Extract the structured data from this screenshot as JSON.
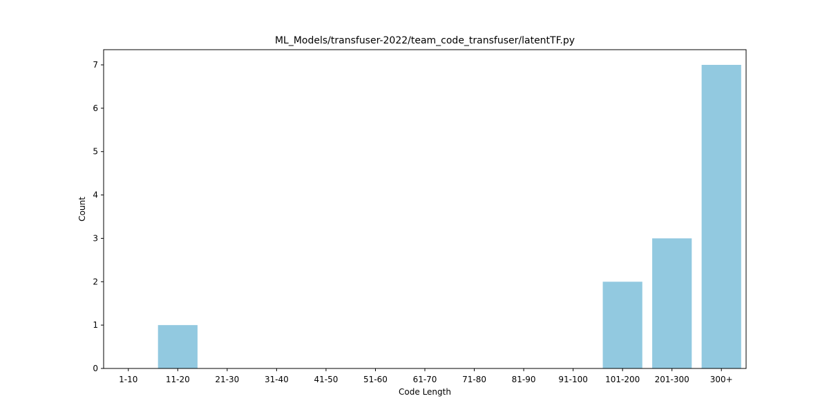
{
  "chart_data": {
    "type": "bar",
    "title": "ML_Models/transfuser-2022/team_code_transfuser/latentTF.py",
    "xlabel": "Code Length",
    "ylabel": "Count",
    "categories": [
      "1-10",
      "11-20",
      "21-30",
      "31-40",
      "41-50",
      "51-60",
      "61-70",
      "71-80",
      "81-90",
      "91-100",
      "101-200",
      "201-300",
      "300+"
    ],
    "values": [
      0,
      1,
      0,
      0,
      0,
      0,
      0,
      0,
      0,
      0,
      2,
      3,
      7
    ],
    "ylim": [
      0,
      7.35
    ],
    "yticks": [
      0,
      1,
      2,
      3,
      4,
      5,
      6,
      7
    ],
    "bar_color": "#92c9e0",
    "grid": false,
    "legend": "none"
  }
}
